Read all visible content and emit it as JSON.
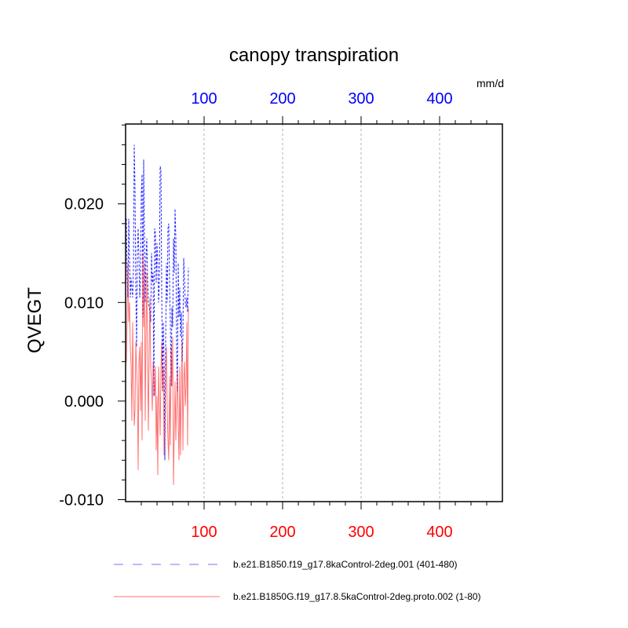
{
  "chart_data": {
    "type": "line",
    "title": "canopy transpiration",
    "units_label": "mm/d",
    "ylabel": "QVEGT",
    "xlabel": "",
    "xlim": [
      0,
      480
    ],
    "ylim": [
      -0.0102,
      0.0281
    ],
    "x_ticks": [
      100,
      200,
      300,
      400
    ],
    "x_tick_labels": [
      "100",
      "200",
      "300",
      "400"
    ],
    "y_ticks": [
      -0.01,
      0.0,
      0.01,
      0.02
    ],
    "y_tick_labels": [
      "-0.010",
      "0.000",
      "0.010",
      "0.020"
    ],
    "top_axis_color": "#0000ff",
    "bottom_axis_color": "#ff0000",
    "grid": "vertical dashed at major x ticks",
    "legend_position": "bottom",
    "series": [
      {
        "name": "b.e21.B1850.f19_g17.8kaControl-2deg.001 (401-480)",
        "color": "#0000ff",
        "dash": "dashed",
        "x": [
          1,
          2,
          3,
          4,
          5,
          6,
          7,
          8,
          9,
          10,
          11,
          12,
          13,
          14,
          15,
          16,
          17,
          18,
          19,
          20,
          21,
          22,
          23,
          24,
          25,
          26,
          27,
          28,
          29,
          30,
          31,
          32,
          33,
          34,
          35,
          36,
          37,
          38,
          39,
          40,
          41,
          42,
          43,
          44,
          45,
          46,
          47,
          48,
          49,
          50,
          51,
          52,
          53,
          54,
          55,
          56,
          57,
          58,
          59,
          60,
          61,
          62,
          63,
          64,
          65,
          66,
          67,
          68,
          69,
          70,
          71,
          72,
          73,
          74,
          75,
          76,
          77,
          78,
          79,
          80
        ],
        "values": [
          0.0185,
          0.0125,
          0.0105,
          0.0185,
          0.0145,
          0.0105,
          0.0125,
          0.0115,
          0.0105,
          0.0135,
          0.026,
          0.0215,
          0.0115,
          0.0055,
          0.0155,
          0.0175,
          0.0145,
          0.0105,
          0.0125,
          0.021,
          0.023,
          0.0085,
          0.0245,
          0.0165,
          0.01,
          0.0145,
          0.0165,
          0.0125,
          0.01,
          0.0095,
          0.009,
          0.008,
          0.015,
          0.012,
          0.013,
          0.0005,
          0.0175,
          0.017,
          0.012,
          0.016,
          0.014,
          0.01,
          0.012,
          0.0238,
          0.0235,
          0.0115,
          0.001,
          0.008,
          0.004,
          -0.006,
          0.006,
          0.014,
          0.01,
          0.0175,
          0.018,
          0.012,
          0.008,
          0.0015,
          0.0095,
          0.0075,
          0.0165,
          0.013,
          0.0195,
          0.0165,
          0.005,
          0.001,
          0.014,
          0.0085,
          0.0115,
          0.0065,
          0.009,
          0.004,
          0.0065,
          0.0145,
          0.0125,
          0.01,
          0.0095,
          0.0105,
          0.009,
          0.0135
        ]
      },
      {
        "name": "b.e21.B1850G.f19_g17.8.5kaControl-2deg.proto.002 (1-80)",
        "color": "#ff0000",
        "dash": "solid",
        "x": [
          1,
          2,
          3,
          4,
          5,
          6,
          7,
          8,
          9,
          10,
          11,
          12,
          13,
          14,
          15,
          16,
          17,
          18,
          19,
          20,
          21,
          22,
          23,
          24,
          25,
          26,
          27,
          28,
          29,
          30,
          31,
          32,
          33,
          34,
          35,
          36,
          37,
          38,
          39,
          40,
          41,
          42,
          43,
          44,
          45,
          46,
          47,
          48,
          49,
          50,
          51,
          52,
          53,
          54,
          55,
          56,
          57,
          58,
          59,
          60,
          61,
          62,
          63,
          64,
          65,
          66,
          67,
          68,
          69,
          70,
          71,
          72,
          73,
          74,
          75,
          76,
          77,
          78,
          79,
          80
        ],
        "values": [
          0.004,
          0.009,
          0.014,
          0.008,
          0.01,
          0.0055,
          0.0035,
          -0.002,
          0.008,
          0.002,
          -0.0025,
          -0.001,
          0.006,
          0.0035,
          0.001,
          -0.007,
          0.004,
          0.0055,
          -0.001,
          0.006,
          -0.004,
          0.015,
          0.0075,
          0.014,
          -0.002,
          0.007,
          0.013,
          0.004,
          -0.003,
          0.005,
          0.0105,
          0.0035,
          0.002,
          -0.001,
          0.004,
          0.0025,
          0.0005,
          0.0035,
          -0.005,
          0.0005,
          -0.0075,
          0.0035,
          0.0,
          -0.0035,
          0.003,
          0.006,
          0.001,
          0.0035,
          -0.0055,
          -0.0035,
          0.003,
          0.0055,
          -0.001,
          -0.004,
          -0.006,
          0.0025,
          -0.0045,
          0.0055,
          0.0015,
          0.0065,
          -0.0085,
          -0.003,
          0.002,
          -0.004,
          0.0,
          0.003,
          -0.0025,
          -0.006,
          0.0035,
          -0.0055,
          0.001,
          0.006,
          -0.005,
          0.002,
          0.004,
          -0.0005,
          0.0015,
          0.008,
          -0.0045,
          0.0095
        ]
      }
    ]
  }
}
